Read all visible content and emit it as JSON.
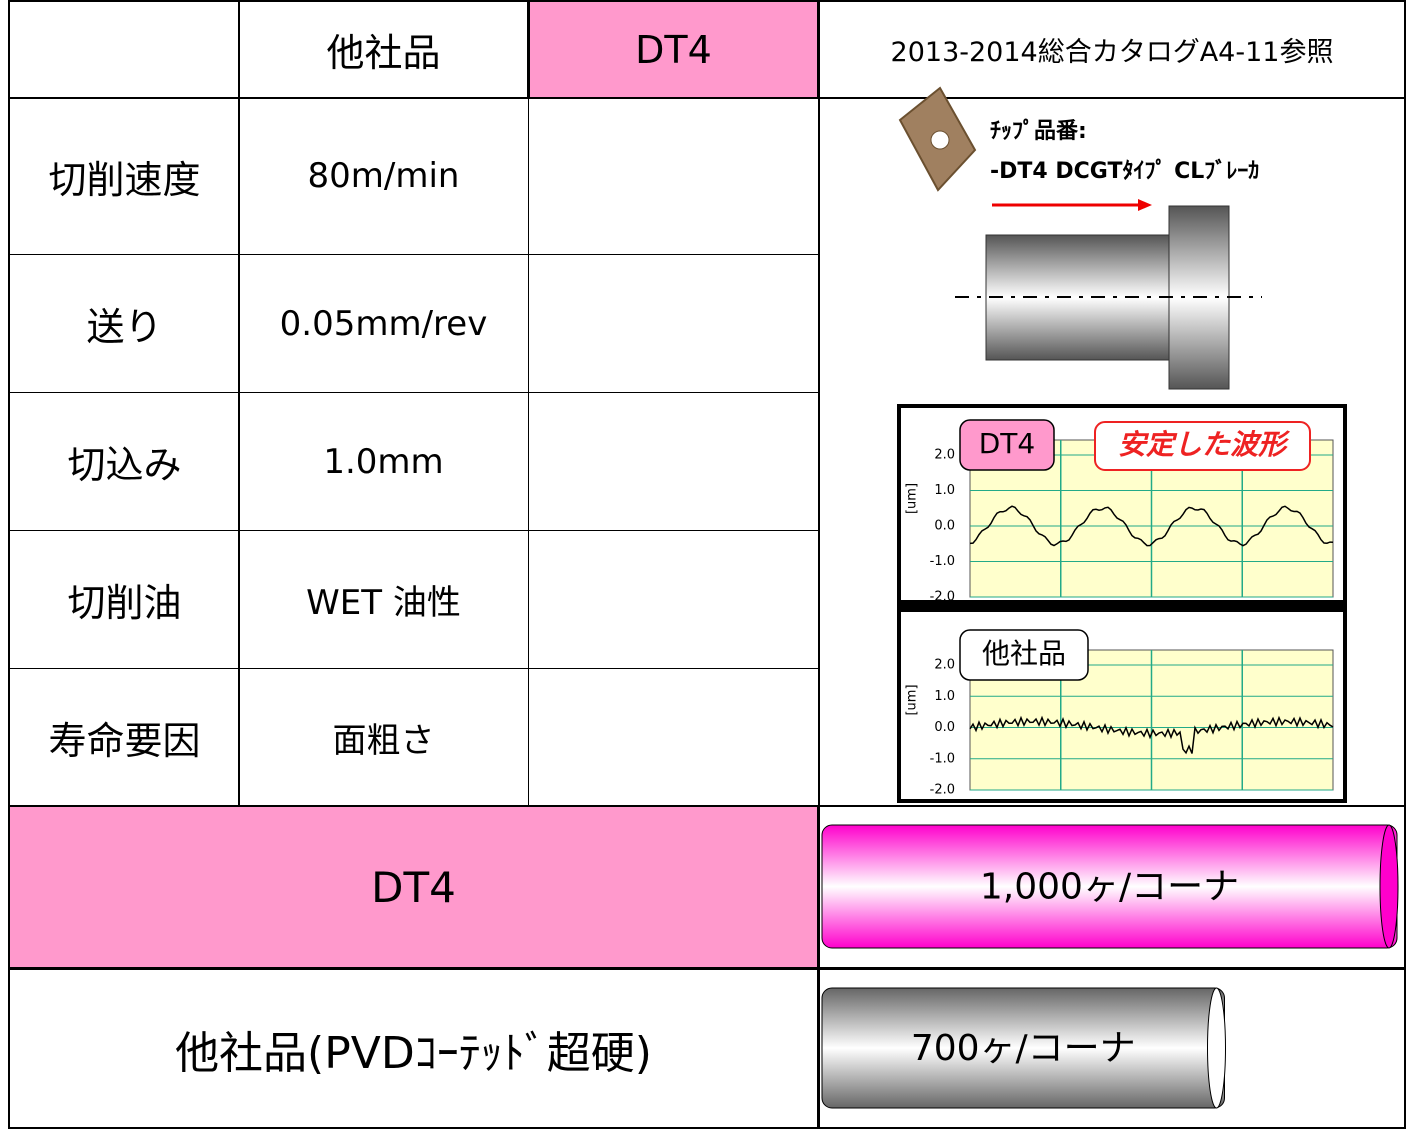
{
  "header": {
    "col1": "他社品",
    "col2": "DT4",
    "col3": "2013-2014総合カタログA4-11参照"
  },
  "rows": [
    [
      "切削速度",
      "80m/min"
    ],
    [
      "送り",
      "0.05mm/rev"
    ],
    [
      "切込み",
      "1.0mm"
    ],
    [
      "切削油",
      "WET 油性"
    ],
    [
      "寿命要因",
      "面粗さ"
    ]
  ],
  "figure": {
    "insert_label": "ﾁｯﾌﾟ品番:",
    "insert_name": "-DT4 DCGTﾀｲﾌﾟ CLﾌﾞﾚｰｶ",
    "charts": [
      {
        "label": "DT4",
        "note": "安定した波形",
        "unit": "[um]",
        "yticks": [
          "2.0",
          "1.0",
          "0.0",
          "-1.0",
          "-2.0"
        ]
      },
      {
        "label": "他社品",
        "unit": "[um]",
        "yticks": [
          "2.0",
          "1.0",
          "0.0",
          "-1.0",
          "-2.0"
        ]
      }
    ]
  },
  "results": [
    {
      "name": "DT4",
      "value": 1000,
      "label": "1,000ヶ/コーナ"
    },
    {
      "name": "他社品(PVDｺｰﾃｯﾄﾞ超硬)",
      "value": 700,
      "label": "700ヶ/コーナ"
    }
  ]
}
